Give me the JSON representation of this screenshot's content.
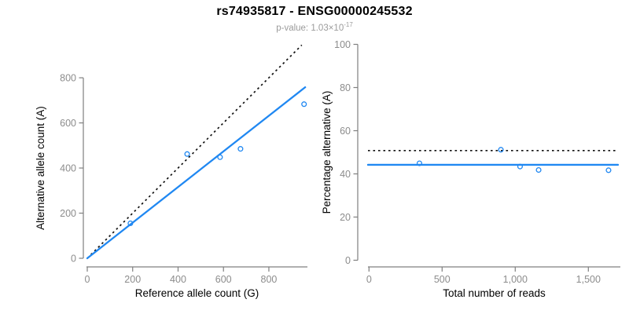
{
  "header": {
    "title": "rs74935817 - ENSG00000245532",
    "p_value_label": "p-value: 1.03×10",
    "p_value_exponent": "-17"
  },
  "colors": {
    "accent_blue": "#2088f2",
    "dotted_black": "#111111",
    "axis_line": "#7f7f7f",
    "tick_label": "#8c8c8c",
    "subtitle_gray": "#9b9b9b"
  },
  "chart_data": [
    {
      "name": "allele-counts-scatter",
      "type": "scatter",
      "title": "",
      "xlabel": "Reference allele count (G)",
      "ylabel": "Alternative allele count (A)",
      "xlim": [
        0,
        970
      ],
      "ylim": [
        0,
        950
      ],
      "grid": false,
      "xticks": [
        {
          "v": 0,
          "label": "0"
        },
        {
          "v": 200,
          "label": "200"
        },
        {
          "v": 400,
          "label": "400"
        },
        {
          "v": 600,
          "label": "600"
        },
        {
          "v": 800,
          "label": "800"
        }
      ],
      "yticks": [
        {
          "v": 0,
          "label": "0"
        },
        {
          "v": 200,
          "label": "200"
        },
        {
          "v": 400,
          "label": "400"
        },
        {
          "v": 600,
          "label": "600"
        },
        {
          "v": 800,
          "label": "800"
        }
      ],
      "points": [
        {
          "x": 190,
          "y": 155
        },
        {
          "x": 440,
          "y": 462
        },
        {
          "x": 585,
          "y": 448
        },
        {
          "x": 675,
          "y": 485
        },
        {
          "x": 955,
          "y": 683
        }
      ],
      "point_color": "#2088f2",
      "lines": [
        {
          "name": "identity-line",
          "style": "dotted",
          "color": "#111111",
          "from": {
            "x": 0,
            "y": 0
          },
          "to": {
            "x": 945,
            "y": 945
          }
        },
        {
          "name": "fitted-line",
          "style": "solid",
          "color": "#2088f2",
          "from": {
            "x": 0,
            "y": 0
          },
          "to": {
            "x": 960,
            "y": 758
          }
        }
      ]
    },
    {
      "name": "percentage-vs-reads-scatter",
      "type": "scatter",
      "title": "",
      "xlabel": "Total number of reads",
      "ylabel": "Percentage alternative (A)",
      "xlim": [
        0,
        1720
      ],
      "ylim": [
        0,
        100
      ],
      "grid": false,
      "xticks": [
        {
          "v": 0,
          "label": "0"
        },
        {
          "v": 500,
          "label": "500"
        },
        {
          "v": 1000,
          "label": "1,000"
        },
        {
          "v": 1500,
          "label": "1,500"
        }
      ],
      "yticks": [
        {
          "v": 0,
          "label": "0"
        },
        {
          "v": 20,
          "label": "20"
        },
        {
          "v": 40,
          "label": "40"
        },
        {
          "v": 60,
          "label": "60"
        },
        {
          "v": 80,
          "label": "80"
        },
        {
          "v": 100,
          "label": "100"
        }
      ],
      "points": [
        {
          "x": 345,
          "y": 44.9
        },
        {
          "x": 902,
          "y": 51.2
        },
        {
          "x": 1033,
          "y": 43.4
        },
        {
          "x": 1160,
          "y": 41.8
        },
        {
          "x": 1638,
          "y": 41.7
        }
      ],
      "point_color": "#2088f2",
      "lines": [
        {
          "name": "expected-percentage-line",
          "style": "dotted",
          "color": "#111111",
          "hline": 50.8
        },
        {
          "name": "fitted-percentage-line",
          "style": "solid",
          "color": "#2088f2",
          "hline": 44.2
        }
      ]
    }
  ]
}
